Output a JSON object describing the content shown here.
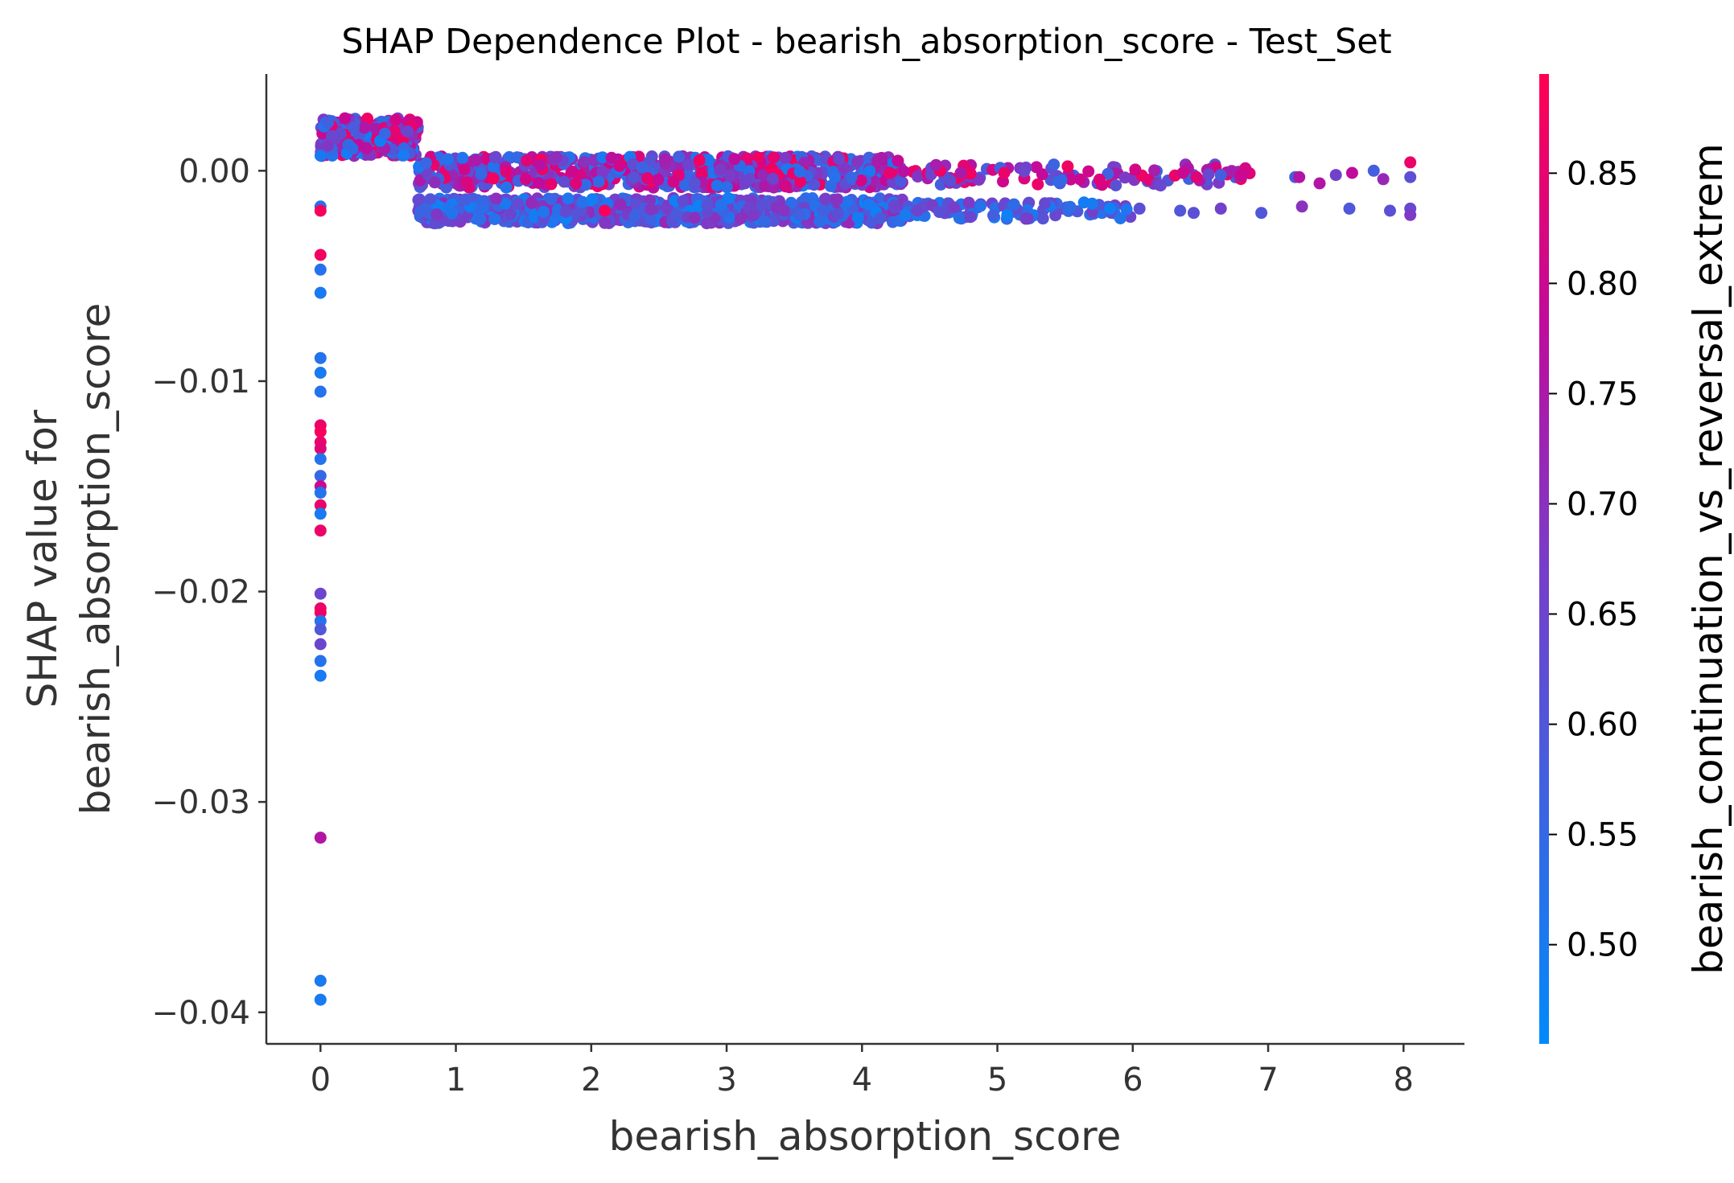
{
  "chart_data": {
    "type": "scatter",
    "title": "SHAP Dependence Plot - bearish_absorption_score - Test_Set",
    "xlabel": "bearish_absorption_score",
    "ylabel_line1": "SHAP value for",
    "ylabel_line2": "bearish_absorption_score",
    "colorbar_label": "bearish_continuation_vs_reversal_extrem",
    "xlim": [
      -0.4,
      8.45
    ],
    "ylim": [
      -0.0415,
      0.0046
    ],
    "x_ticks": [
      0,
      1,
      2,
      3,
      4,
      5,
      6,
      7,
      8
    ],
    "x_tick_labels": [
      "0",
      "1",
      "2",
      "3",
      "4",
      "5",
      "6",
      "7",
      "8"
    ],
    "y_ticks": [
      0.0,
      -0.01,
      -0.02,
      -0.03,
      -0.04
    ],
    "y_tick_labels": [
      "0.00",
      "−0.01",
      "−0.02",
      "−0.03",
      "−0.04"
    ],
    "colorbar_range": [
      0.455,
      0.895
    ],
    "colorbar_ticks": [
      0.5,
      0.55,
      0.6,
      0.65,
      0.7,
      0.75,
      0.8,
      0.85
    ],
    "colorbar_tick_labels": [
      "0.50",
      "0.55",
      "0.60",
      "0.65",
      "0.70",
      "0.75",
      "0.80",
      "0.85"
    ],
    "colormap": [
      "#008afb",
      "#ff0052"
    ],
    "grid": false,
    "clusters": [
      {
        "x": [
          0.0,
          0.72
        ],
        "y": [
          0.0007,
          0.0025
        ],
        "c": [
          0.48,
          0.88
        ],
        "n": 300
      },
      {
        "x": [
          0.72,
          4.3
        ],
        "y": [
          -0.0008,
          0.0007
        ],
        "c": [
          0.5,
          0.88
        ],
        "n": 750
      },
      {
        "x": [
          4.3,
          6.9
        ],
        "y": [
          -0.0007,
          0.0003
        ],
        "c": [
          0.55,
          0.88
        ],
        "n": 110
      },
      {
        "x": [
          0.72,
          4.3
        ],
        "y": [
          -0.0025,
          -0.0013
        ],
        "c": [
          0.48,
          0.72
        ],
        "n": 750
      },
      {
        "x": [
          4.3,
          6.0
        ],
        "y": [
          -0.0023,
          -0.0015
        ],
        "c": [
          0.48,
          0.68
        ],
        "n": 90
      }
    ],
    "points": [
      {
        "x": 6.37,
        "y": -0.0001,
        "c": 0.8
      },
      {
        "x": 6.47,
        "y": -0.0003,
        "c": 0.84
      },
      {
        "x": 6.65,
        "y": -0.0002,
        "c": 0.58
      },
      {
        "x": 6.8,
        "y": -0.0002,
        "c": 0.8
      },
      {
        "x": 7.2,
        "y": -0.0003,
        "c": 0.58
      },
      {
        "x": 7.23,
        "y": -0.0003,
        "c": 0.76
      },
      {
        "x": 7.38,
        "y": -0.0006,
        "c": 0.76
      },
      {
        "x": 7.5,
        "y": -0.0002,
        "c": 0.66
      },
      {
        "x": 7.62,
        "y": -0.0001,
        "c": 0.78
      },
      {
        "x": 7.78,
        "y": 0.0,
        "c": 0.58
      },
      {
        "x": 7.85,
        "y": -0.0004,
        "c": 0.72
      },
      {
        "x": 8.05,
        "y": 0.0004,
        "c": 0.86
      },
      {
        "x": 8.05,
        "y": -0.0003,
        "c": 0.62
      },
      {
        "x": 6.05,
        "y": -0.0018,
        "c": 0.62
      },
      {
        "x": 6.35,
        "y": -0.0019,
        "c": 0.6
      },
      {
        "x": 6.45,
        "y": -0.002,
        "c": 0.62
      },
      {
        "x": 6.65,
        "y": -0.0018,
        "c": 0.66
      },
      {
        "x": 6.95,
        "y": -0.002,
        "c": 0.6
      },
      {
        "x": 7.25,
        "y": -0.0017,
        "c": 0.7
      },
      {
        "x": 7.6,
        "y": -0.0018,
        "c": 0.6
      },
      {
        "x": 7.9,
        "y": -0.0019,
        "c": 0.62
      },
      {
        "x": 8.05,
        "y": -0.0018,
        "c": 0.64
      },
      {
        "x": 8.05,
        "y": -0.0021,
        "c": 0.68
      },
      {
        "x": 5.05,
        "y": -0.0001,
        "c": 0.86
      },
      {
        "x": 5.45,
        "y": -0.0005,
        "c": 0.55
      },
      {
        "x": 4.05,
        "y": -0.0016,
        "c": 0.5
      },
      {
        "x": 2.1,
        "y": -0.0019,
        "c": 0.88
      },
      {
        "x": 0.0,
        "y": -0.0017,
        "c": 0.52
      },
      {
        "x": 0.0,
        "y": -0.0019,
        "c": 0.88
      },
      {
        "x": 0.0,
        "y": -0.004,
        "c": 0.87
      },
      {
        "x": 0.0,
        "y": -0.0047,
        "c": 0.52
      },
      {
        "x": 0.0,
        "y": -0.0058,
        "c": 0.5
      },
      {
        "x": 0.0,
        "y": -0.0089,
        "c": 0.52
      },
      {
        "x": 0.0,
        "y": -0.0096,
        "c": 0.5
      },
      {
        "x": 0.0,
        "y": -0.0105,
        "c": 0.52
      },
      {
        "x": 0.0,
        "y": -0.0121,
        "c": 0.86
      },
      {
        "x": 0.0,
        "y": -0.0124,
        "c": 0.88
      },
      {
        "x": 0.0,
        "y": -0.0129,
        "c": 0.86
      },
      {
        "x": 0.0,
        "y": -0.0132,
        "c": 0.84
      },
      {
        "x": 0.0,
        "y": -0.0137,
        "c": 0.52
      },
      {
        "x": 0.0,
        "y": -0.0145,
        "c": 0.55
      },
      {
        "x": 0.0,
        "y": -0.015,
        "c": 0.8
      },
      {
        "x": 0.0,
        "y": -0.0153,
        "c": 0.52
      },
      {
        "x": 0.0,
        "y": -0.0159,
        "c": 0.86
      },
      {
        "x": 0.0,
        "y": -0.0163,
        "c": 0.5
      },
      {
        "x": 0.0,
        "y": -0.0171,
        "c": 0.86
      },
      {
        "x": 0.0,
        "y": -0.0201,
        "c": 0.65
      },
      {
        "x": 0.0,
        "y": -0.0208,
        "c": 0.86
      },
      {
        "x": 0.0,
        "y": -0.021,
        "c": 0.87
      },
      {
        "x": 0.0,
        "y": -0.0214,
        "c": 0.52
      },
      {
        "x": 0.0,
        "y": -0.0218,
        "c": 0.6
      },
      {
        "x": 0.0,
        "y": -0.0225,
        "c": 0.65
      },
      {
        "x": 0.0,
        "y": -0.0233,
        "c": 0.52
      },
      {
        "x": 0.0,
        "y": -0.024,
        "c": 0.5
      },
      {
        "x": 0.0,
        "y": -0.0317,
        "c": 0.76
      },
      {
        "x": 0.0,
        "y": -0.0385,
        "c": 0.5
      },
      {
        "x": 0.0,
        "y": -0.0394,
        "c": 0.5
      }
    ]
  }
}
